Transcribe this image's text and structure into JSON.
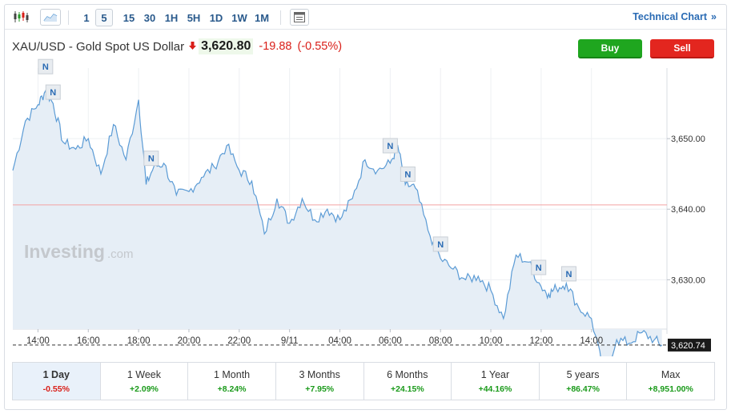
{
  "toolbar": {
    "intervals": [
      "1",
      "5",
      "15",
      "30",
      "1H",
      "5H",
      "1D",
      "1W",
      "1M"
    ],
    "active_interval": "5",
    "technical_chart_label": "Technical Chart",
    "technical_chart_arrow": "»"
  },
  "instrument": {
    "name": "XAU/USD - Gold Spot US Dollar",
    "price": "3,620.80",
    "change": "-19.88",
    "change_pct": "(-0.55%)"
  },
  "actions": {
    "buy_label": "Buy",
    "sell_label": "Sell"
  },
  "watermark": {
    "brand": "Investing",
    "suffix": ".com"
  },
  "news_marker_label": "N",
  "colors": {
    "line": "#5b9bd5",
    "area": "#e6eef6",
    "down": "#d91e18",
    "up": "#1a9a1a",
    "buy": "#1fa61f",
    "sell": "#e3261f",
    "prev_close_line": "#f3a3a3"
  },
  "chart_data": {
    "type": "area",
    "x_tick_labels": [
      "14:00",
      "16:00",
      "18:00",
      "20:00",
      "22:00",
      "9/11",
      "04:00",
      "06:00",
      "08:00",
      "10:00",
      "12:00",
      "14:00"
    ],
    "y_tick_labels": [
      "3,650.00",
      "3,640.00",
      "3,630.00"
    ],
    "y_ticks": [
      3650,
      3640,
      3630
    ],
    "ylim": [
      3623,
      3660
    ],
    "current_price_label": "3,620.74",
    "current_price": 3620.74,
    "previous_close": 3640.6,
    "news_marker_times": [
      14.3,
      14.6,
      18.5,
      4.0,
      4.7,
      6.0,
      9.9,
      11.1
    ],
    "x": [
      13.0,
      13.5,
      14.0,
      14.3,
      14.6,
      15.0,
      15.5,
      16.0,
      16.5,
      17.0,
      17.5,
      18.0,
      18.3,
      18.6,
      19.0,
      19.5,
      20.0,
      20.5,
      21.0,
      21.5,
      22.0,
      22.5,
      23.0,
      23.5,
      24.0,
      24.5,
      25.0,
      25.5,
      26.0,
      26.5,
      27.0,
      27.5,
      28.0,
      28.3,
      28.6,
      29.0,
      29.5,
      30.0,
      30.5,
      31.0,
      31.5,
      32.0,
      32.5,
      33.0,
      33.5,
      34.0,
      34.3,
      34.6,
      35.0,
      35.5,
      36.0,
      36.5,
      37.0,
      37.5,
      38.0,
      38.5,
      38.8
    ],
    "values": [
      3645.5,
      3652.5,
      3654.8,
      3656.8,
      3655.0,
      3649.5,
      3648.5,
      3650.0,
      3645.0,
      3652.0,
      3647.0,
      3655.5,
      3643.5,
      3646.0,
      3646.5,
      3642.0,
      3642.5,
      3644.5,
      3646.0,
      3649.0,
      3645.5,
      3644.0,
      3636.5,
      3641.5,
      3638.0,
      3641.5,
      3638.5,
      3640.0,
      3638.5,
      3641.5,
      3647.0,
      3645.5,
      3646.5,
      3649.0,
      3643.5,
      3643.0,
      3637.0,
      3633.0,
      3631.5,
      3630.0,
      3630.5,
      3628.5,
      3624.5,
      3633.5,
      3632.5,
      3629.0,
      3628.0,
      3628.8,
      3629.5,
      3626.0,
      3624.5,
      3616.5,
      3621.5,
      3621.0,
      3622.5,
      3621.5,
      3620.74
    ]
  },
  "periods": [
    {
      "label": "1 Day",
      "value": "-0.55%",
      "sign": "neg"
    },
    {
      "label": "1 Week",
      "value": "+2.09%",
      "sign": "pos"
    },
    {
      "label": "1 Month",
      "value": "+8.24%",
      "sign": "pos"
    },
    {
      "label": "3 Months",
      "value": "+7.95%",
      "sign": "pos"
    },
    {
      "label": "6 Months",
      "value": "+24.15%",
      "sign": "pos"
    },
    {
      "label": "1 Year",
      "value": "+44.16%",
      "sign": "pos"
    },
    {
      "label": "5 years",
      "value": "+86.47%",
      "sign": "pos"
    },
    {
      "label": "Max",
      "value": "+8,951.00%",
      "sign": "pos"
    }
  ],
  "active_period": "1 Day"
}
